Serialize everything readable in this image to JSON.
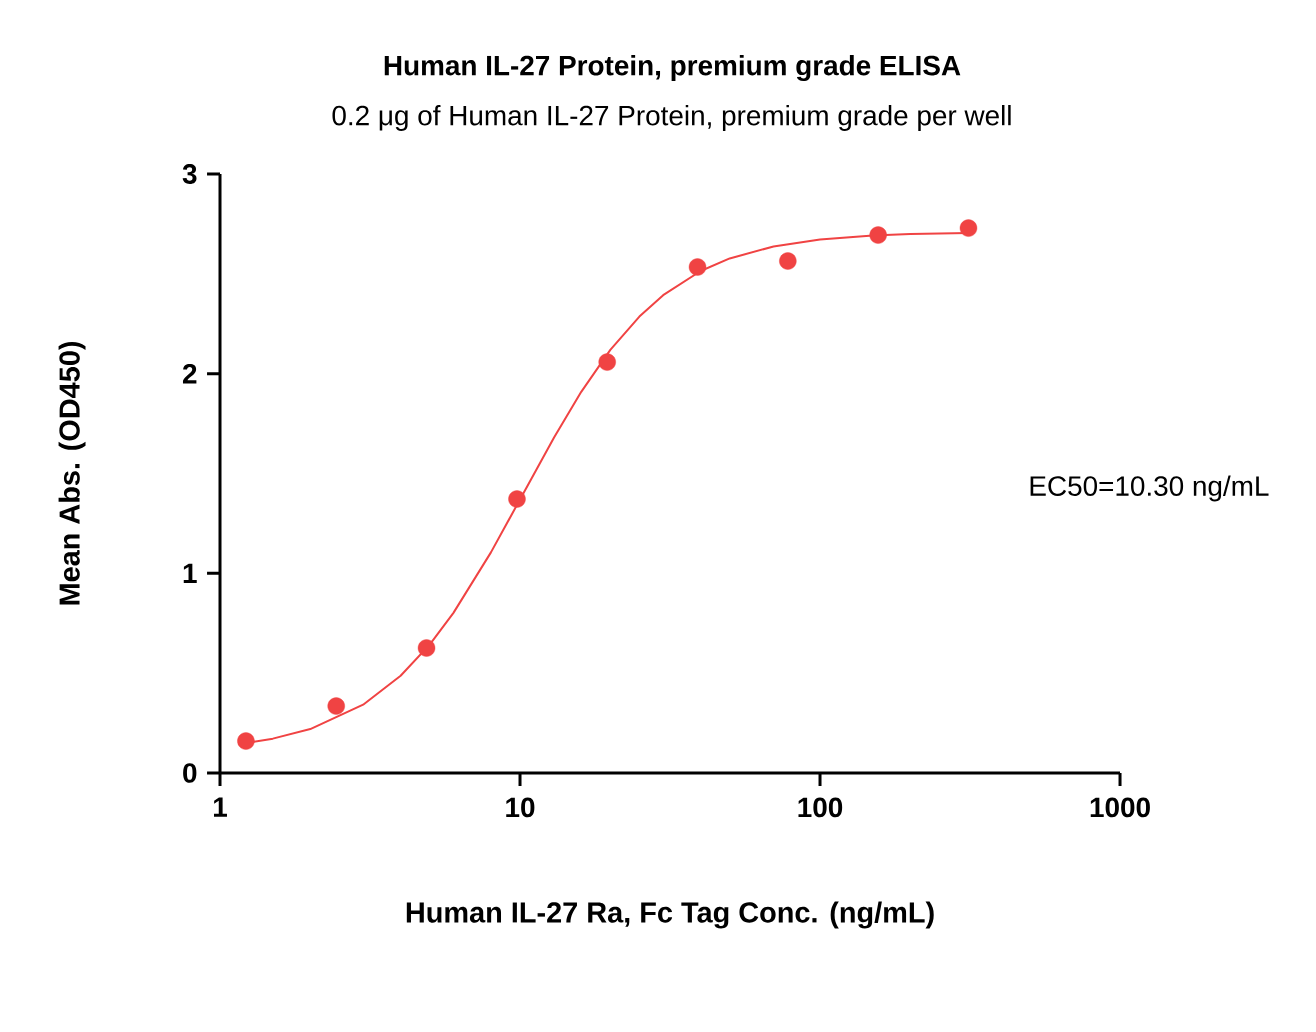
{
  "chart_data": {
    "type": "scatter",
    "title": "Human IL-27 Protein, premium grade ELISA",
    "subtitle": "0.2 μg of Human IL-27 Protein, premium grade per well",
    "xlabel": "Human IL-27 Ra, Fc Tag Conc. (ng/mL)",
    "ylabel": "Mean Abs. (OD450)",
    "annotations": [
      "EC50=10.30 ng/mL"
    ],
    "log": "x",
    "xlim": [
      1,
      1000
    ],
    "xticks": [
      1,
      10,
      100,
      1000
    ],
    "ylim": [
      0,
      3
    ],
    "yticks": [
      0,
      1,
      2,
      3
    ],
    "grid": false,
    "series": [
      {
        "color": "#f04343",
        "x": [
          1.22,
          2.44,
          4.88,
          9.77,
          19.53,
          39.06,
          78.13,
          156.25,
          312.5
        ],
        "values": [
          0.16,
          0.335,
          0.626,
          1.372,
          2.058,
          2.534,
          2.564,
          2.694,
          2.729
        ]
      },
      {
        "type": "line",
        "color": "#f04343",
        "line_style": "solid",
        "x": [
          1.15,
          1.5,
          2,
          3,
          4,
          5,
          6,
          8,
          10,
          13,
          16,
          20,
          25,
          30,
          40,
          50,
          70,
          100,
          150,
          200,
          312.5
        ],
        "values": [
          0.144,
          0.172,
          0.22,
          0.342,
          0.487,
          0.643,
          0.802,
          1.105,
          1.37,
          1.682,
          1.909,
          2.119,
          2.286,
          2.393,
          2.514,
          2.577,
          2.637,
          2.672,
          2.692,
          2.699,
          2.705
        ]
      }
    ]
  }
}
